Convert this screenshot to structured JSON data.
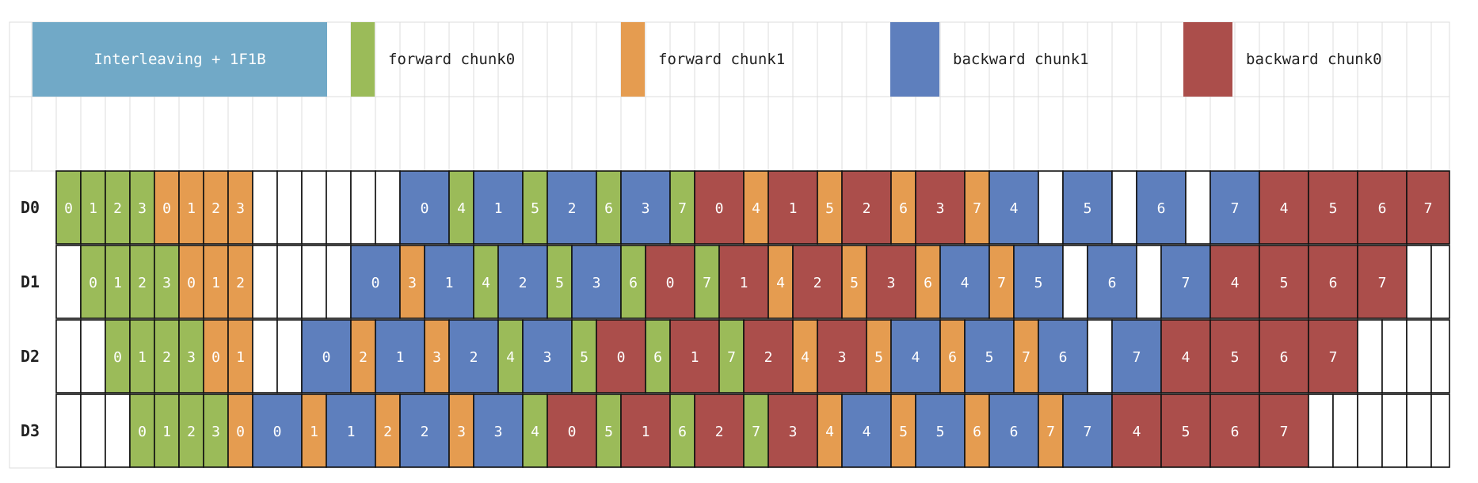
{
  "colors": {
    "forward_chunk0": "#9bbb59",
    "forward_chunk1": "#e59c50",
    "backward_chunk1": "#5e7fbd",
    "backward_chunk0": "#ab4e4b",
    "title_bg": "#71a9c7",
    "grid": "#dcdcdc"
  },
  "legend": {
    "title": "Interleaving + 1F1B",
    "items": [
      {
        "key": "f0",
        "label": "forward chunk0"
      },
      {
        "key": "f1",
        "label": "forward chunk1"
      },
      {
        "key": "b1",
        "label": "backward chunk1"
      },
      {
        "key": "b0",
        "label": "backward chunk0"
      }
    ]
  },
  "devices": [
    {
      "label": "D0",
      "cells": [
        [
          "f0",
          "0"
        ],
        [
          "f0",
          "1"
        ],
        [
          "f0",
          "2"
        ],
        [
          "f0",
          "3"
        ],
        [
          "f1",
          "0"
        ],
        [
          "f1",
          "1"
        ],
        [
          "f1",
          "2"
        ],
        [
          "f1",
          "3"
        ],
        [
          "idle",
          ""
        ],
        [
          "idle",
          ""
        ],
        [
          "idle",
          ""
        ],
        [
          "idle",
          ""
        ],
        [
          "idle",
          ""
        ],
        [
          "idle",
          ""
        ],
        [
          "b1",
          "0"
        ],
        [
          "f0",
          "4"
        ],
        [
          "b1",
          "1"
        ],
        [
          "f0",
          "5"
        ],
        [
          "b1",
          "2"
        ],
        [
          "f0",
          "6"
        ],
        [
          "b1",
          "3"
        ],
        [
          "f0",
          "7"
        ],
        [
          "b0",
          "0"
        ],
        [
          "f1",
          "4"
        ],
        [
          "b0",
          "1"
        ],
        [
          "f1",
          "5"
        ],
        [
          "b0",
          "2"
        ],
        [
          "f1",
          "6"
        ],
        [
          "b0",
          "3"
        ],
        [
          "f1",
          "7"
        ],
        [
          "b1",
          "4"
        ],
        [
          "idle",
          ""
        ],
        [
          "b1",
          "5"
        ],
        [
          "idle",
          ""
        ],
        [
          "b1",
          "6"
        ],
        [
          "idle",
          ""
        ],
        [
          "b1",
          "7"
        ],
        [
          "b0",
          "4"
        ],
        [
          "b0",
          "5"
        ],
        [
          "b0",
          "6"
        ],
        [
          "b0",
          "7"
        ]
      ]
    },
    {
      "label": "D1",
      "cells": [
        [
          "idle",
          ""
        ],
        [
          "f0",
          "0"
        ],
        [
          "f0",
          "1"
        ],
        [
          "f0",
          "2"
        ],
        [
          "f0",
          "3"
        ],
        [
          "f1",
          "0"
        ],
        [
          "f1",
          "1"
        ],
        [
          "f1",
          "2"
        ],
        [
          "idle",
          ""
        ],
        [
          "idle",
          ""
        ],
        [
          "idle",
          ""
        ],
        [
          "idle",
          ""
        ],
        [
          "b1",
          "0"
        ],
        [
          "f1",
          "3"
        ],
        [
          "b1",
          "1"
        ],
        [
          "f0",
          "4"
        ],
        [
          "b1",
          "2"
        ],
        [
          "f0",
          "5"
        ],
        [
          "b1",
          "3"
        ],
        [
          "f0",
          "6"
        ],
        [
          "b0",
          "0"
        ],
        [
          "f0",
          "7"
        ],
        [
          "b0",
          "1"
        ],
        [
          "f1",
          "4"
        ],
        [
          "b0",
          "2"
        ],
        [
          "f1",
          "5"
        ],
        [
          "b0",
          "3"
        ],
        [
          "f1",
          "6"
        ],
        [
          "b1",
          "4"
        ],
        [
          "f1",
          "7"
        ],
        [
          "b1",
          "5"
        ],
        [
          "idle",
          ""
        ],
        [
          "b1",
          "6"
        ],
        [
          "idle",
          ""
        ],
        [
          "b1",
          "7"
        ],
        [
          "b0",
          "4"
        ],
        [
          "b0",
          "5"
        ],
        [
          "b0",
          "6"
        ],
        [
          "b0",
          "7"
        ],
        [
          "idle",
          ""
        ],
        [
          "idle",
          ""
        ]
      ]
    },
    {
      "label": "D2",
      "cells": [
        [
          "idle",
          ""
        ],
        [
          "idle",
          ""
        ],
        [
          "f0",
          "0"
        ],
        [
          "f0",
          "1"
        ],
        [
          "f0",
          "2"
        ],
        [
          "f0",
          "3"
        ],
        [
          "f1",
          "0"
        ],
        [
          "f1",
          "1"
        ],
        [
          "idle",
          ""
        ],
        [
          "idle",
          ""
        ],
        [
          "b1",
          "0"
        ],
        [
          "f1",
          "2"
        ],
        [
          "b1",
          "1"
        ],
        [
          "f1",
          "3"
        ],
        [
          "b1",
          "2"
        ],
        [
          "f0",
          "4"
        ],
        [
          "b1",
          "3"
        ],
        [
          "f0",
          "5"
        ],
        [
          "b0",
          "0"
        ],
        [
          "f0",
          "6"
        ],
        [
          "b0",
          "1"
        ],
        [
          "f0",
          "7"
        ],
        [
          "b0",
          "2"
        ],
        [
          "f1",
          "4"
        ],
        [
          "b0",
          "3"
        ],
        [
          "f1",
          "5"
        ],
        [
          "b1",
          "4"
        ],
        [
          "f1",
          "6"
        ],
        [
          "b1",
          "5"
        ],
        [
          "f1",
          "7"
        ],
        [
          "b1",
          "6"
        ],
        [
          "idle",
          ""
        ],
        [
          "b1",
          "7"
        ],
        [
          "b0",
          "4"
        ],
        [
          "b0",
          "5"
        ],
        [
          "b0",
          "6"
        ],
        [
          "b0",
          "7"
        ],
        [
          "idle",
          ""
        ],
        [
          "idle",
          ""
        ],
        [
          "idle",
          ""
        ],
        [
          "idle",
          ""
        ]
      ]
    },
    {
      "label": "D3",
      "cells": [
        [
          "idle",
          ""
        ],
        [
          "idle",
          ""
        ],
        [
          "idle",
          ""
        ],
        [
          "f0",
          "0"
        ],
        [
          "f0",
          "1"
        ],
        [
          "f0",
          "2"
        ],
        [
          "f0",
          "3"
        ],
        [
          "f1",
          "0"
        ],
        [
          "b1",
          "0"
        ],
        [
          "f1",
          "1"
        ],
        [
          "b1",
          "1"
        ],
        [
          "f1",
          "2"
        ],
        [
          "b1",
          "2"
        ],
        [
          "f1",
          "3"
        ],
        [
          "b1",
          "3"
        ],
        [
          "f0",
          "4"
        ],
        [
          "b0",
          "0"
        ],
        [
          "f0",
          "5"
        ],
        [
          "b0",
          "1"
        ],
        [
          "f0",
          "6"
        ],
        [
          "b0",
          "2"
        ],
        [
          "f0",
          "7"
        ],
        [
          "b0",
          "3"
        ],
        [
          "f1",
          "4"
        ],
        [
          "b1",
          "4"
        ],
        [
          "f1",
          "5"
        ],
        [
          "b1",
          "5"
        ],
        [
          "f1",
          "6"
        ],
        [
          "b1",
          "6"
        ],
        [
          "f1",
          "7"
        ],
        [
          "b1",
          "7"
        ],
        [
          "b0",
          "4"
        ],
        [
          "b0",
          "5"
        ],
        [
          "b0",
          "6"
        ],
        [
          "b0",
          "7"
        ],
        [
          "idle",
          ""
        ],
        [
          "idle",
          ""
        ],
        [
          "idle",
          ""
        ],
        [
          "idle",
          ""
        ],
        [
          "idle",
          ""
        ],
        [
          "idle",
          ""
        ]
      ]
    }
  ]
}
